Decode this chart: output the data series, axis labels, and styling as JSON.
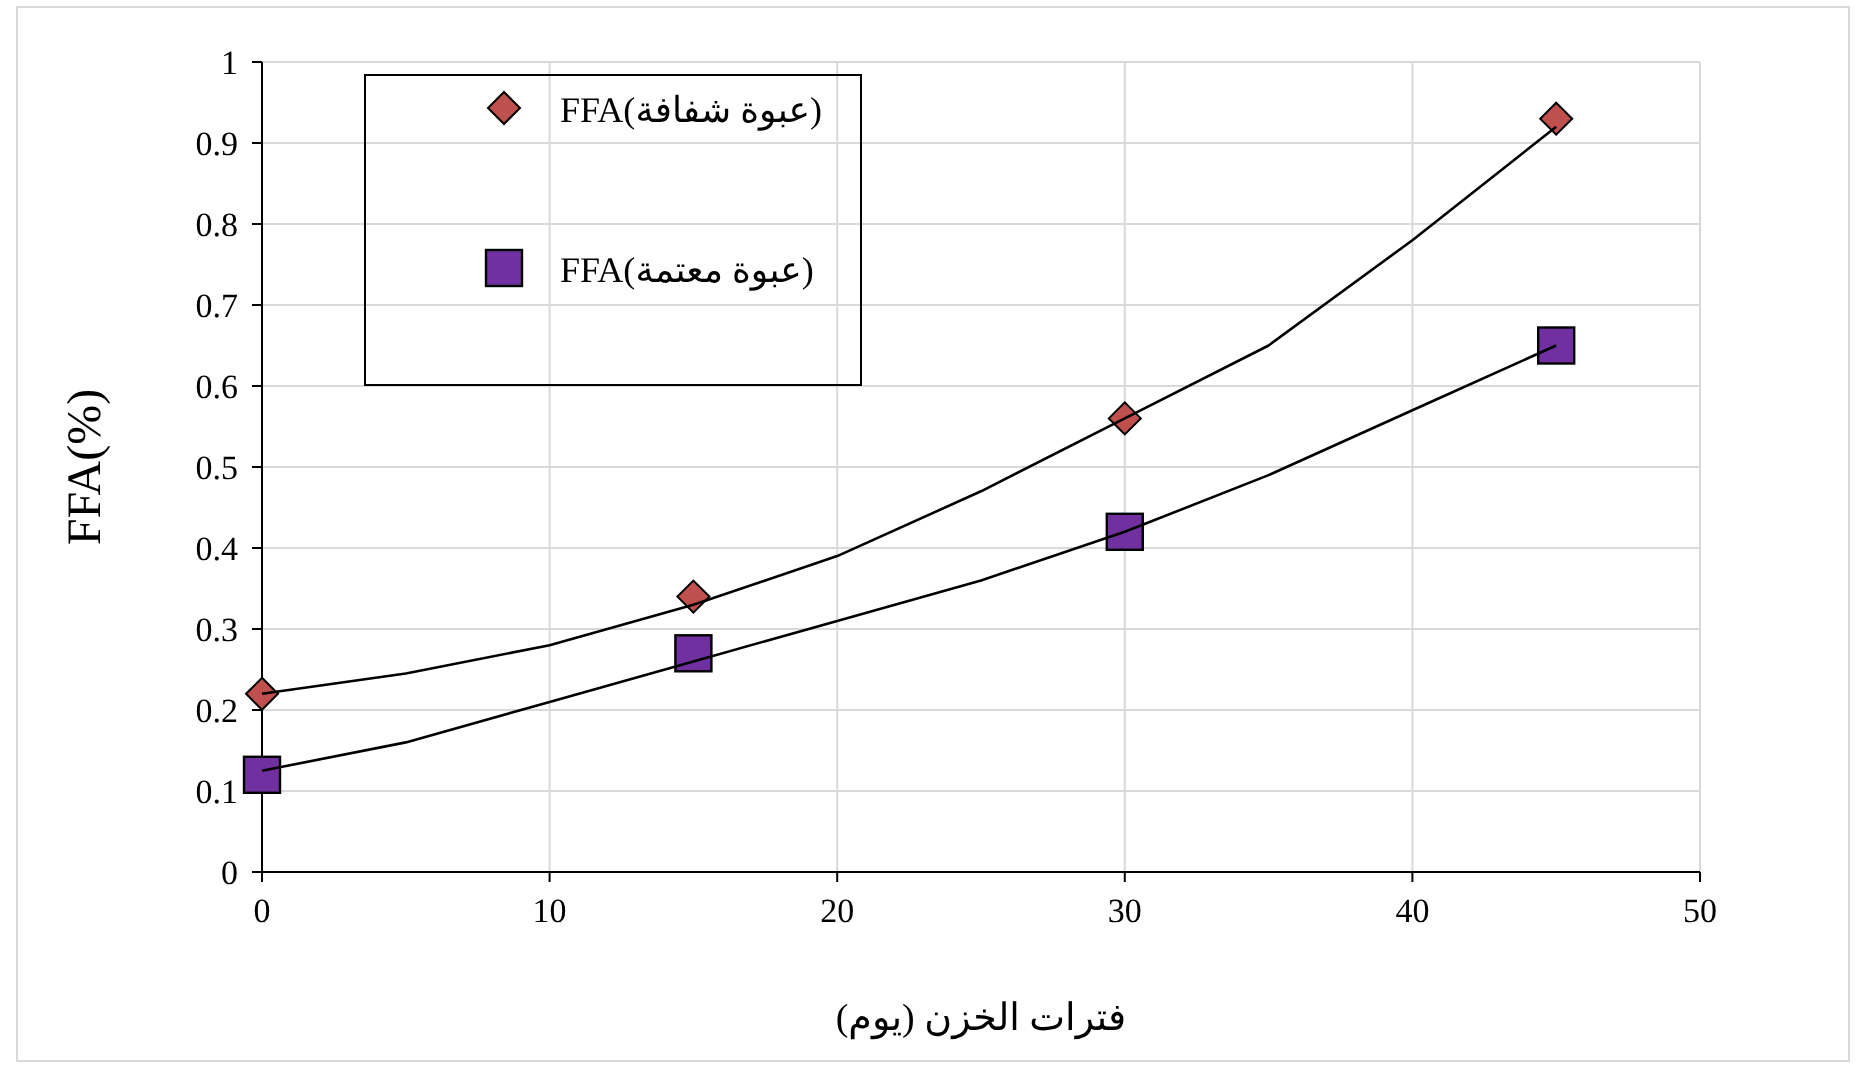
{
  "chart_data": {
    "type": "scatter",
    "xlabel": "فترات الخزن (يوم)",
    "ylabel": "FFA(%)",
    "xlim": [
      0,
      50
    ],
    "ylim": [
      0,
      1
    ],
    "xticks": [
      0,
      10,
      20,
      30,
      40,
      50
    ],
    "yticks": [
      0,
      0.1,
      0.2,
      0.3,
      0.4,
      0.5,
      0.6,
      0.7,
      0.8,
      0.9,
      1
    ],
    "grid": true,
    "legend": "top left",
    "series": [
      {
        "name": "FFA(عبوة شفافة)",
        "marker": "diamond",
        "color": "#c0504d",
        "x": [
          0,
          15,
          30,
          45
        ],
        "values": [
          0.22,
          0.34,
          0.56,
          0.93
        ]
      },
      {
        "name": "FFA(عبوة معتمة)",
        "marker": "square",
        "color": "#7030a0",
        "x": [
          0,
          15,
          30,
          45
        ],
        "values": [
          0.12,
          0.27,
          0.42,
          0.65
        ]
      },
      {
        "type": "line",
        "color": "#000000",
        "x": [
          0,
          5,
          10,
          15,
          20,
          25,
          30,
          35,
          40,
          45
        ],
        "values": [
          0.22,
          0.245,
          0.28,
          0.33,
          0.39,
          0.47,
          0.56,
          0.65,
          0.78,
          0.92
        ]
      },
      {
        "type": "line",
        "color": "#000000",
        "x": [
          0,
          5,
          10,
          15,
          20,
          25,
          30,
          35,
          40,
          45
        ],
        "values": [
          0.125,
          0.16,
          0.21,
          0.26,
          0.31,
          0.36,
          0.42,
          0.49,
          0.57,
          0.65
        ]
      }
    ]
  }
}
